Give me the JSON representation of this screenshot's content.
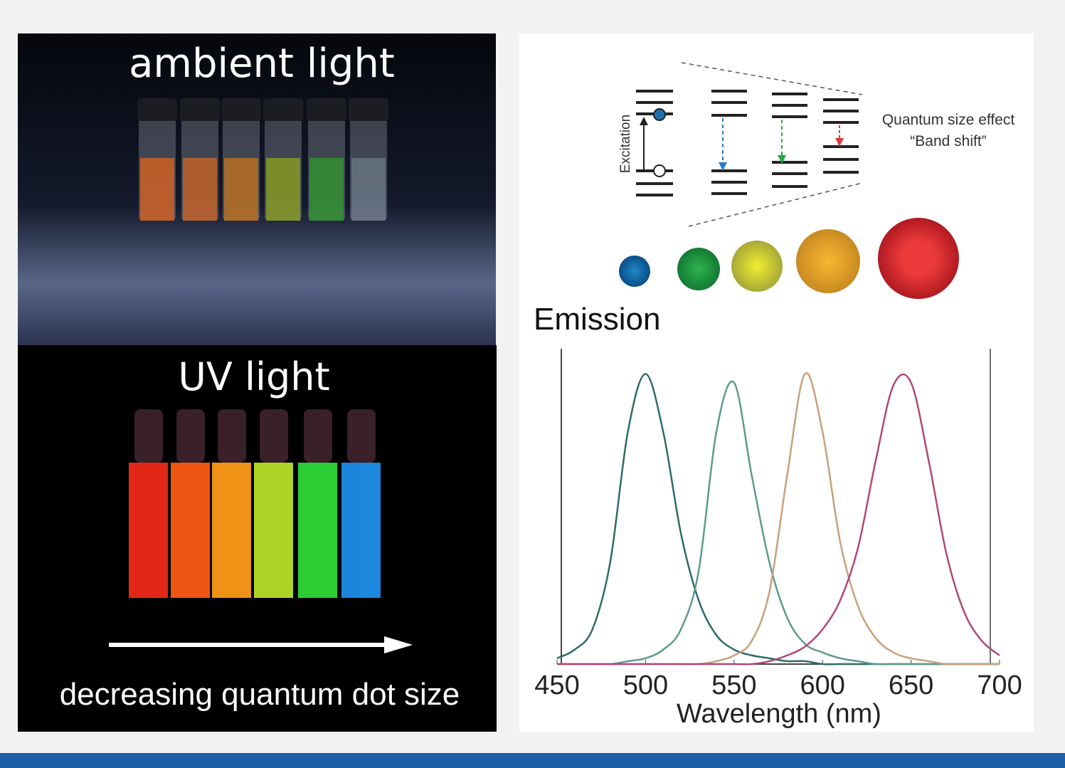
{
  "panels": {
    "ambient": {
      "label": "ambient light"
    },
    "uv": {
      "label": "UV light",
      "caption": "decreasing quantum dot size"
    }
  },
  "diagram": {
    "axis_label": "Excitation",
    "note_lines": [
      "Quantum size effect",
      "“Band shift”"
    ]
  },
  "chart_data": {
    "type": "line",
    "title": "Emission",
    "xlabel": "Wavelength (nm)",
    "x": [
      450,
      460,
      470,
      480,
      490,
      500,
      510,
      520,
      530,
      540,
      550,
      560,
      570,
      580,
      590,
      600,
      610,
      620,
      630,
      640,
      650,
      660,
      670,
      680,
      690,
      700
    ],
    "series": [
      {
        "color": "#2f6b6a",
        "values": [
          0.02,
          0.05,
          0.12,
          0.35,
          0.8,
          1.0,
          0.8,
          0.45,
          0.22,
          0.1,
          0.05,
          0.03,
          0.02,
          0.01,
          0.01,
          0,
          0,
          0,
          0,
          0,
          0,
          0,
          0,
          0,
          0,
          0
        ]
      },
      {
        "color": "#5f9a8c",
        "values": [
          0,
          0,
          0,
          0,
          0.01,
          0.02,
          0.05,
          0.12,
          0.32,
          0.8,
          0.97,
          0.65,
          0.35,
          0.16,
          0.07,
          0.04,
          0.02,
          0.01,
          0,
          0,
          0,
          0,
          0,
          0,
          0,
          0
        ]
      },
      {
        "color": "#c9a07c",
        "values": [
          0,
          0,
          0,
          0,
          0,
          0,
          0,
          0,
          0,
          0.01,
          0.03,
          0.08,
          0.25,
          0.65,
          1.0,
          0.8,
          0.42,
          0.2,
          0.09,
          0.04,
          0.02,
          0.01,
          0,
          0,
          0,
          0
        ]
      },
      {
        "color": "#b04878",
        "values": [
          0,
          0,
          0,
          0,
          0,
          0,
          0,
          0,
          0,
          0,
          0,
          0,
          0.01,
          0.03,
          0.06,
          0.12,
          0.22,
          0.4,
          0.7,
          0.96,
          0.97,
          0.7,
          0.38,
          0.18,
          0.08,
          0.03
        ]
      }
    ],
    "xlim": [
      450,
      700
    ],
    "xticks": [
      450,
      500,
      550,
      600,
      650,
      700
    ],
    "ylim": [
      0,
      1.05
    ]
  }
}
